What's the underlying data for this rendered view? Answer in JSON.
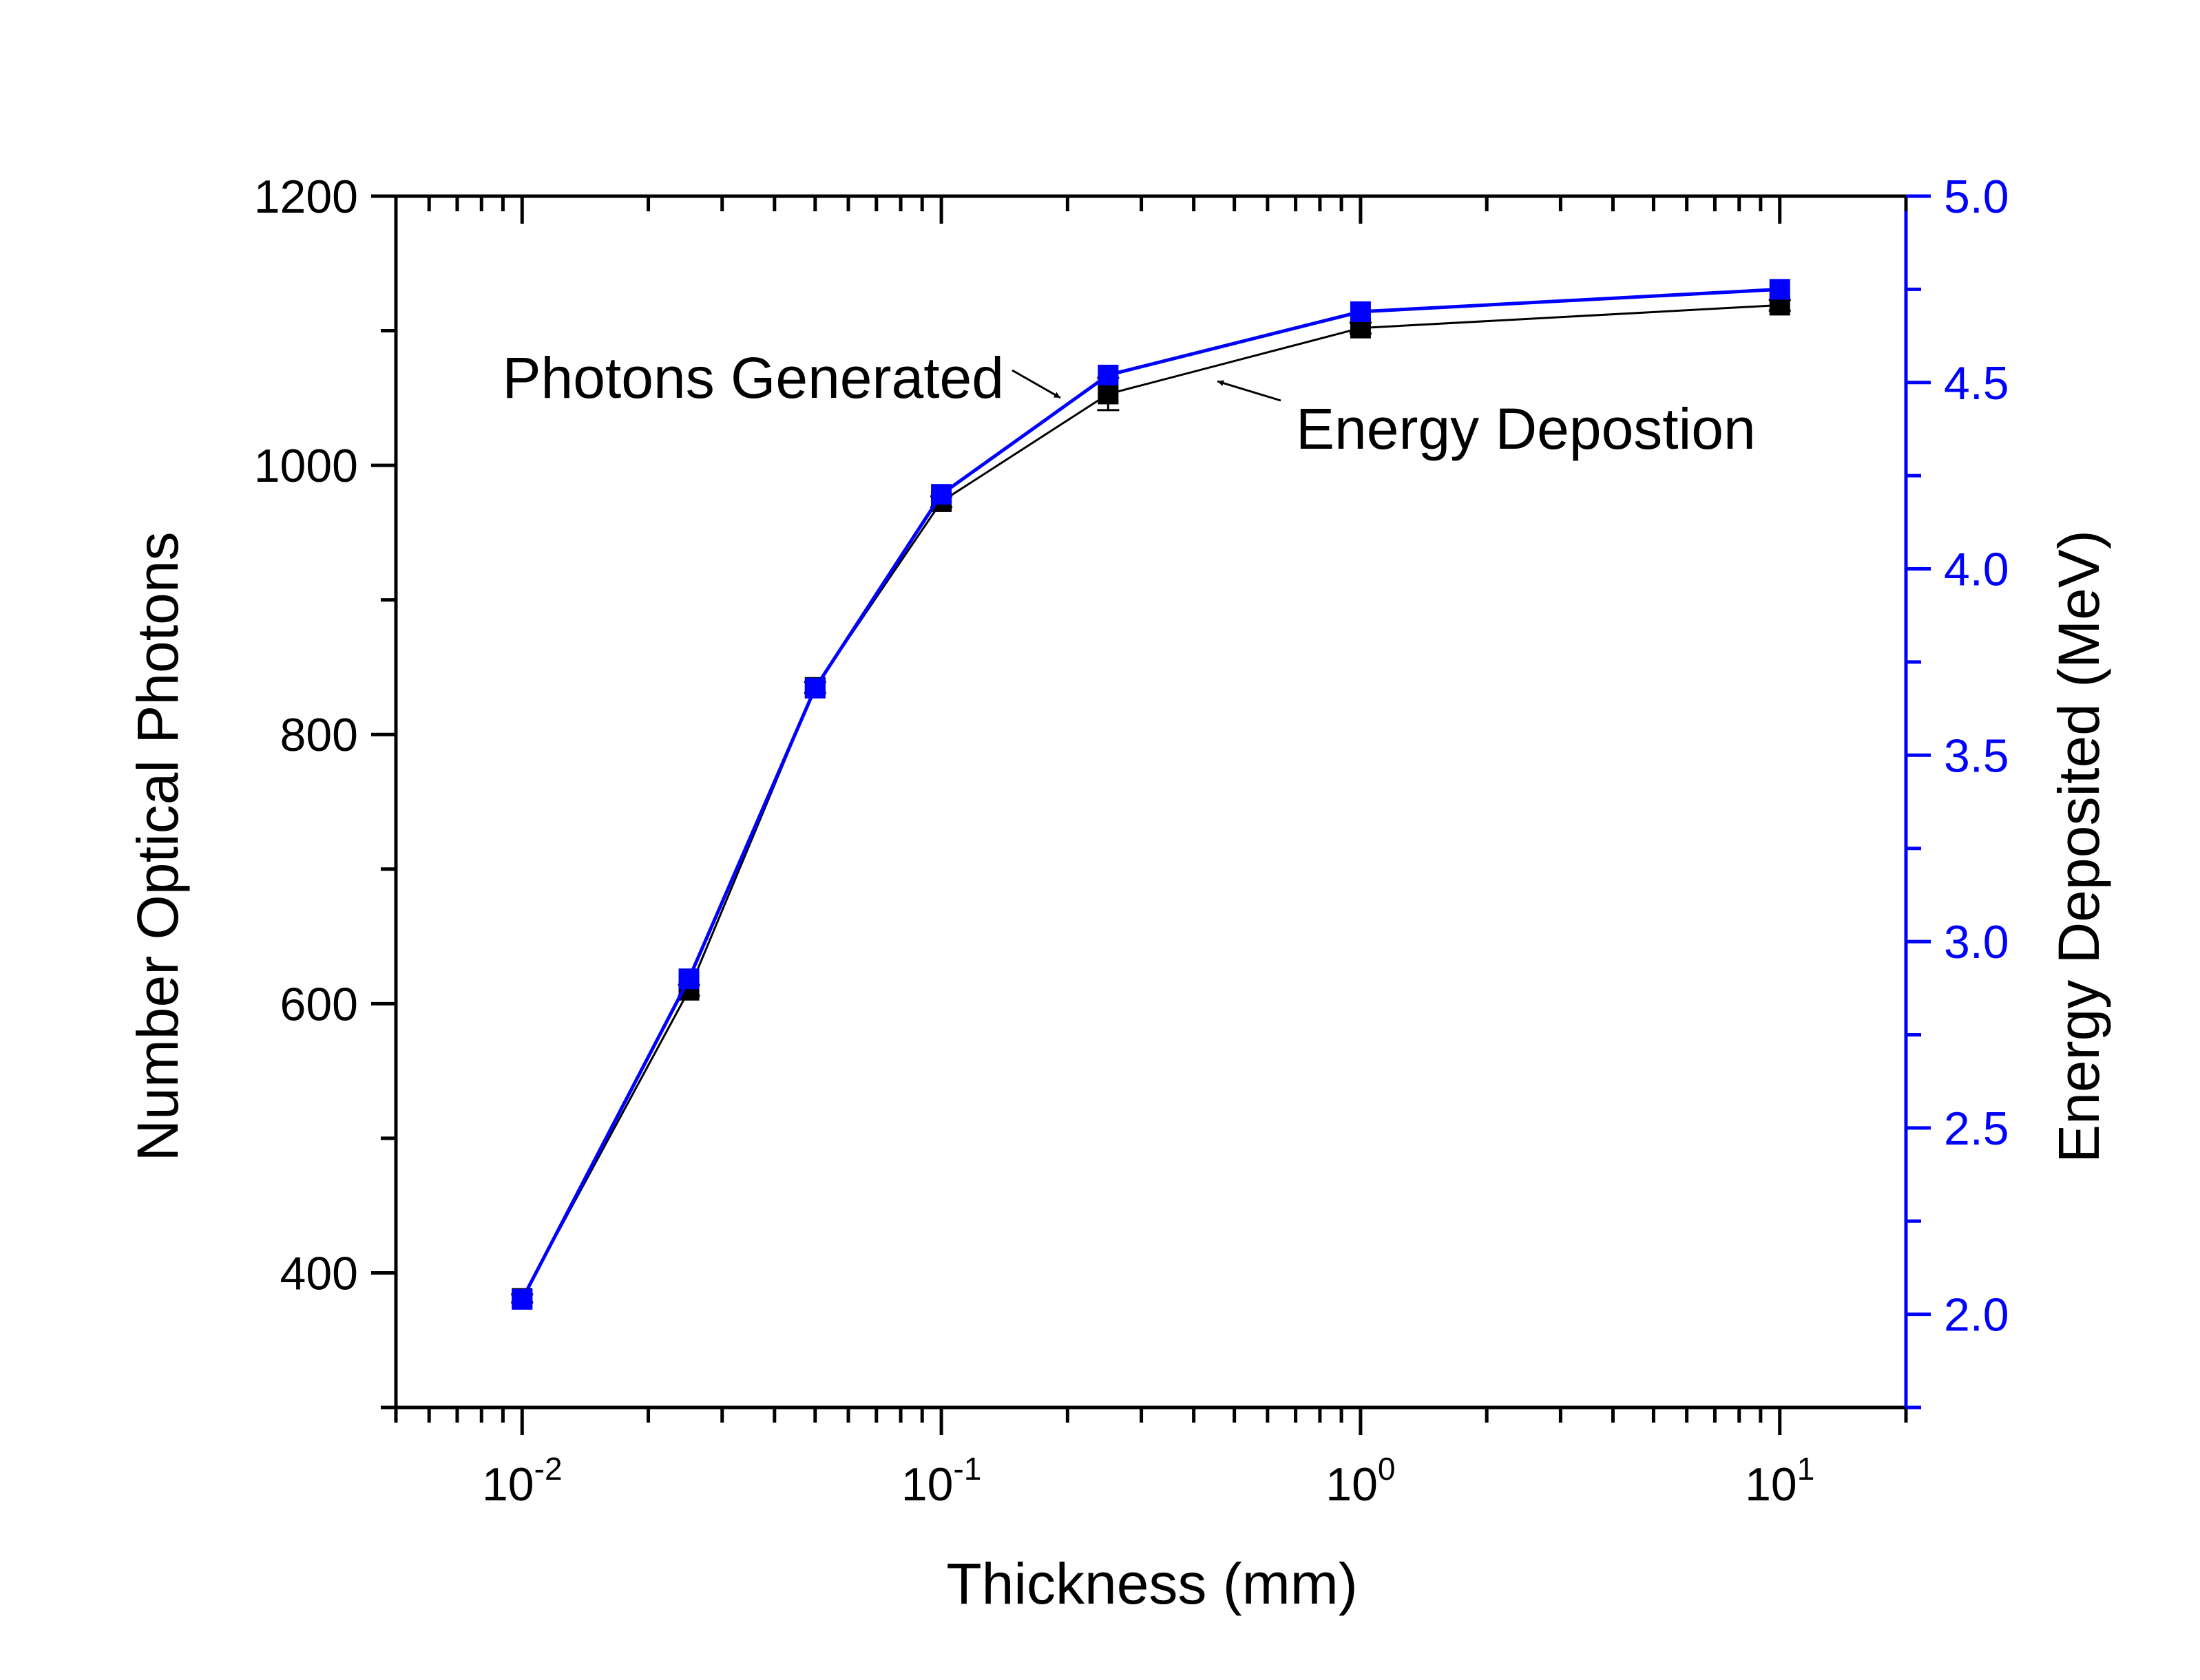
{
  "chart_data": {
    "type": "line",
    "title": "",
    "xlabel": "Thickness (mm)",
    "ylabel_left": "Number Optical Photons",
    "ylabel_right": "Energy Deposited (MeV)",
    "x_scale": "log",
    "x_range": [
      0.005,
      20
    ],
    "y_left_range": [
      300,
      1200
    ],
    "y_right_range": [
      1.75,
      5.0
    ],
    "x_ticks": [
      {
        "value": 0.01,
        "base": "10",
        "exp": "-2"
      },
      {
        "value": 0.1,
        "base": "10",
        "exp": "-1"
      },
      {
        "value": 1,
        "base": "10",
        "exp": "0"
      },
      {
        "value": 10,
        "base": "10",
        "exp": "1"
      }
    ],
    "y_left_ticks": [
      "400",
      "600",
      "800",
      "1000",
      "1200"
    ],
    "y_right_ticks": [
      "2.0",
      "2.5",
      "3.0",
      "3.5",
      "4.0",
      "4.5",
      "5.0"
    ],
    "grid": false,
    "x": [
      0.01,
      0.025,
      0.05,
      0.1,
      0.25,
      1,
      10
    ],
    "series": [
      {
        "name": "Photons Generated",
        "axis": "left",
        "color": "#000000",
        "values": [
          381,
          610,
          835,
          973,
          1053,
          1102,
          1119
        ],
        "errors": [
          3,
          4,
          4,
          4,
          12,
          4,
          4
        ]
      },
      {
        "name": "Energy Depostion",
        "axis": "right",
        "color": "#0000ff",
        "values": [
          2.04,
          2.9,
          3.68,
          4.2,
          4.52,
          4.69,
          4.75
        ]
      }
    ],
    "annotations": [
      {
        "text": "Photons Generated",
        "series": "Photons Generated"
      },
      {
        "text": "Energy Depostion",
        "series": "Energy Depostion"
      }
    ]
  }
}
